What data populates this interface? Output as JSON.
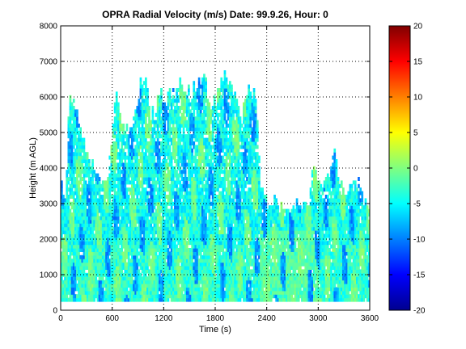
{
  "chart_data": {
    "type": "heatmap",
    "title": "OPRA Radial Velocity (m/s)  Date: 99.9.26, Hour: 0",
    "xlabel": "Time (s)",
    "ylabel": "Height (m AGL)",
    "xlim": [
      0,
      3600
    ],
    "ylim": [
      0,
      8000
    ],
    "xticks": [
      "0",
      "600",
      "1200",
      "1800",
      "2400",
      "3000",
      "3600"
    ],
    "yticks": [
      "0",
      "1000",
      "2000",
      "3000",
      "4000",
      "5000",
      "6000",
      "7000",
      "8000"
    ],
    "grid": true,
    "colorbar": {
      "colormap": "jet",
      "range": [
        -20,
        20
      ],
      "ticks": [
        "-20",
        "-15",
        "-10",
        "-5",
        "0",
        "5",
        "10",
        "15",
        "20"
      ]
    },
    "data_extent": {
      "x": [
        0,
        3600
      ],
      "y": [
        250,
        6700
      ]
    },
    "echo_top_profile": {
      "x": [
        0,
        60,
        100,
        160,
        220,
        300,
        380,
        440,
        520,
        600,
        640,
        700,
        760,
        820,
        880,
        920,
        980,
        1040,
        1100,
        1160,
        1220,
        1280,
        1340,
        1400,
        1460,
        1520,
        1580,
        1640,
        1700,
        1760,
        1820,
        1880,
        1940,
        2000,
        2060,
        2100,
        2160,
        2220,
        2280,
        2340,
        2400,
        2460,
        2520,
        2580,
        2640,
        2700,
        2760,
        2820,
        2880,
        2940,
        3000,
        3060,
        3120,
        3180,
        3240,
        3300,
        3360,
        3420,
        3480,
        3540,
        3600
      ],
      "y": [
        3600,
        3200,
        6000,
        5700,
        5300,
        4300,
        4000,
        3700,
        3500,
        4600,
        6200,
        5200,
        4900,
        5300,
        5600,
        6400,
        6600,
        5700,
        5400,
        6200,
        5600,
        6300,
        6000,
        6400,
        6200,
        6000,
        6300,
        6600,
        6200,
        5600,
        6000,
        6700,
        6300,
        6200,
        6000,
        5300,
        6000,
        6200,
        5700,
        3200,
        2900,
        3000,
        2900,
        2800,
        2800,
        2900,
        2900,
        3000,
        2900,
        4300,
        3400,
        3600,
        3800,
        4500,
        3600,
        3400,
        3300,
        3500,
        3500,
        3000,
        3000
      ]
    },
    "velocity_field_summary": {
      "dominant_range": [
        -7,
        -2
      ],
      "weak_echo_range": [
        -2,
        1
      ],
      "strong_downward_range": [
        -11,
        -7
      ]
    }
  }
}
